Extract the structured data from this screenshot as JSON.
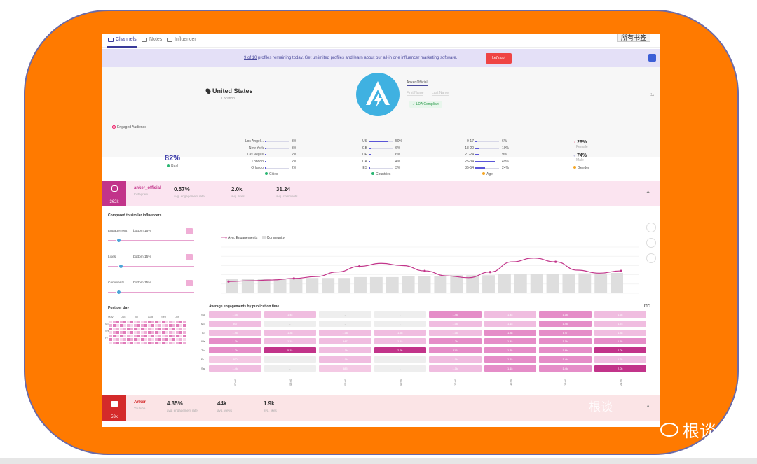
{
  "colors": {
    "frame_bg": "#ff7a00",
    "accent": "#3a3a9a",
    "instagram": "#c2348a",
    "youtube": "#d42a2a",
    "heat_dark": "#c2348a",
    "heat_mid": "#e58dc8",
    "heat_light": "#f0bde0",
    "heat_empty": "#eeeeee"
  },
  "tabs": [
    {
      "label": "Channels",
      "icon": "monitor-icon"
    },
    {
      "label": "Notes",
      "icon": "note-icon"
    },
    {
      "label": "Influencer",
      "icon": "flag-icon"
    }
  ],
  "bookmark_button": "所有书签",
  "banner": {
    "count": "9 of 10",
    "text": " profiles remaining today. Get unlimited profiles and learn about our all-in one influencer marketing software.",
    "button": "Let's go!"
  },
  "profile": {
    "location": "United States",
    "location_label": "Location",
    "name": "Anker Official",
    "first_name_placeholder": "First Name",
    "last_name_placeholder": "Last Name",
    "compliance": "✓  LDA Compliant"
  },
  "engaged": {
    "title": "Engaged Audience",
    "real_value": "82%",
    "real_label": "Real",
    "cities": {
      "label": "Cities",
      "items": [
        {
          "name": "Los Angel...",
          "pct": "3%",
          "v": 3
        },
        {
          "name": "New York",
          "pct": "3%",
          "v": 3
        },
        {
          "name": "Las Vegas",
          "pct": "2%",
          "v": 2
        },
        {
          "name": "London",
          "pct": "2%",
          "v": 2
        },
        {
          "name": "Orlando",
          "pct": "2%",
          "v": 2
        }
      ]
    },
    "countries": {
      "label": "Countries",
      "items": [
        {
          "name": "US",
          "pct": "50%",
          "v": 50
        },
        {
          "name": "GB",
          "pct": "6%",
          "v": 6
        },
        {
          "name": "DE",
          "pct": "6%",
          "v": 6
        },
        {
          "name": "CA",
          "pct": "4%",
          "v": 4
        },
        {
          "name": "ES",
          "pct": "3%",
          "v": 3
        }
      ]
    },
    "age": {
      "label": "Age",
      "items": [
        {
          "name": "0-17",
          "pct": "6%",
          "v": 6
        },
        {
          "name": "18-20",
          "pct": "10%",
          "v": 10
        },
        {
          "name": "21-24",
          "pct": "9%",
          "v": 9
        },
        {
          "name": "25-34",
          "pct": "49%",
          "v": 49
        },
        {
          "name": "35-54",
          "pct": "24%",
          "v": 24
        }
      ]
    },
    "gender": {
      "label": "Gender",
      "female_pct": "26%",
      "female_label": "Female",
      "male_pct": "74%",
      "male_label": "Male"
    }
  },
  "instagram": {
    "followers": "362k",
    "handle": "anker_official",
    "platform": "Instagram",
    "engagement_rate": "0.57%",
    "engagement_rate_label": "avg. engagement rate",
    "likes": "2.0k",
    "likes_label": "avg. likes",
    "comments": "31.24",
    "comments_label": "avg. comments"
  },
  "compare": {
    "title": "Compared to similar influencers",
    "sliders": [
      {
        "label": "Engagement",
        "value": "bottom 15%",
        "level": 0.1
      },
      {
        "label": "Likes",
        "value": "bottom 15%",
        "level": 0.12
      },
      {
        "label": "Comments",
        "value": "bottom 15%",
        "level": 0.1
      }
    ]
  },
  "post_per_day": {
    "title": "Post per day",
    "months": [
      "May",
      "Jun",
      "Jul",
      "Aug",
      "Sep",
      "Oct"
    ],
    "days": [
      "Mo",
      "We",
      "Fr"
    ]
  },
  "chart_data": {
    "type": "bar",
    "series": [
      {
        "name": "Avg. Engagements",
        "type": "line"
      },
      {
        "name": "Community",
        "type": "bar"
      }
    ],
    "bar_values": [
      0.62,
      0.62,
      0.62,
      0.62,
      0.62,
      0.66,
      0.66,
      0.66,
      0.7,
      0.7,
      0.7,
      0.74,
      0.74,
      0.74,
      0.78,
      0.78,
      0.78,
      0.82,
      0.82,
      0.82,
      0.84,
      0.84,
      0.86,
      0.86,
      0.88
    ],
    "line_values": [
      0.2,
      0.22,
      0.24,
      0.28,
      0.33,
      0.45,
      0.6,
      0.68,
      0.62,
      0.48,
      0.35,
      0.3,
      0.45,
      0.72,
      0.82,
      0.72,
      0.5,
      0.42,
      0.48
    ],
    "grid": true,
    "legend": "top-left"
  },
  "heatmap": {
    "title": "Average engagements by publication time",
    "timezone": "UTC",
    "days": [
      "Su",
      "Mo",
      "Tu",
      "We",
      "Th",
      "Fr",
      "Sa"
    ],
    "times": [
      "00:00",
      "03:00",
      "06:00",
      "09:00",
      "12:00",
      "15:00",
      "18:00",
      "21:00"
    ],
    "cells": [
      [
        "1.0k",
        "1.4k",
        "-",
        "-",
        "1.4k",
        "1.4k",
        "1.1k",
        "1.6k"
      ],
      [
        "807",
        "-",
        "-",
        "-",
        "1.0k",
        "1.1k",
        "1.4k",
        "1.7k"
      ],
      [
        "1.9k",
        "1.3k",
        "1.0k",
        "1.5k",
        "1.0k",
        "1.3k",
        "877",
        "1.3k"
      ],
      [
        "1.3k",
        "1.1k",
        "847",
        "1.1k",
        "1.2k",
        "1.4k",
        "1.1k",
        "1.5k"
      ],
      [
        "1.2k",
        "5.1k",
        "1.1k",
        "2.9k",
        "815",
        "1.3k",
        "1.6k",
        "2.0k"
      ],
      [
        "800",
        "-",
        "1.0k",
        "-",
        "1.0k",
        "1.1k",
        "1.4k",
        "1.2k"
      ],
      [
        "1.4k",
        "-",
        "885",
        "-",
        "1.1k",
        "1.1k",
        "1.4k",
        "2.0k"
      ]
    ],
    "levels": [
      [
        2,
        2,
        0,
        0,
        3,
        2,
        3,
        2
      ],
      [
        2,
        0,
        0,
        0,
        2,
        2,
        3,
        2
      ],
      [
        2,
        2,
        2,
        2,
        2,
        3,
        3,
        2
      ],
      [
        3,
        2,
        2,
        2,
        3,
        3,
        3,
        3
      ],
      [
        3,
        4,
        2,
        4,
        3,
        3,
        3,
        4
      ],
      [
        1,
        0,
        2,
        0,
        2,
        3,
        3,
        2
      ],
      [
        2,
        0,
        1,
        0,
        2,
        3,
        3,
        4
      ]
    ]
  },
  "youtube": {
    "subscribers": "53k",
    "handle": "Anker",
    "platform": "Youtube",
    "engagement_rate": "4.35%",
    "engagement_rate_label": "avg. engagement rate",
    "views": "44k",
    "views_label": "avg. views",
    "likes": "1.9k",
    "likes_label": "avg. likes"
  },
  "watermark": {
    "text": "根谈"
  }
}
